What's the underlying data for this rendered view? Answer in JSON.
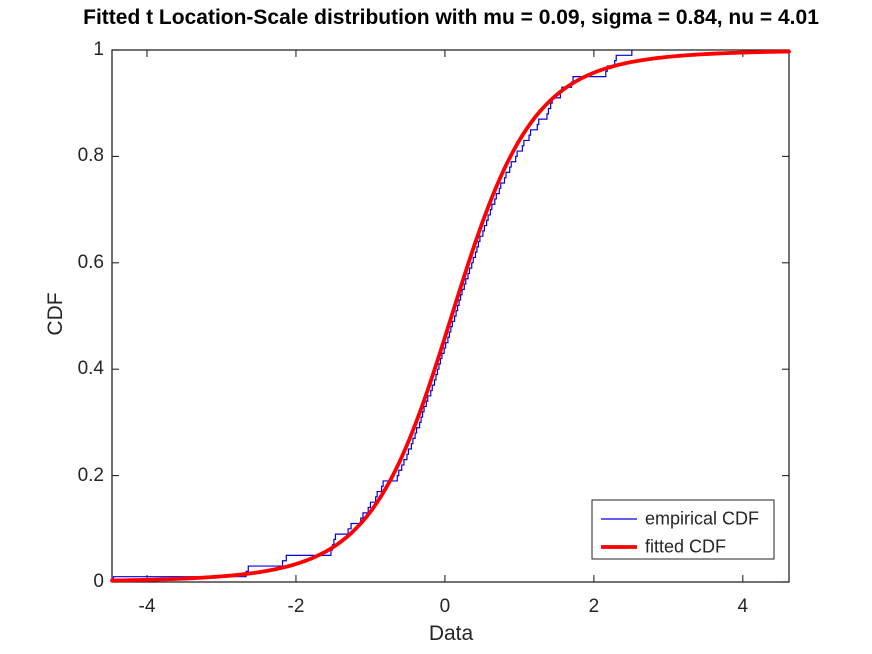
{
  "chart_data": {
    "type": "line",
    "title": "Fitted t Location-Scale distribution with mu = 0.09, sigma = 0.84, nu = 4.01",
    "xlabel": "Data",
    "ylabel": "CDF",
    "xlim": [
      -4.47,
      4.62
    ],
    "ylim": [
      0,
      1
    ],
    "xticks": {
      "values": [
        -4,
        -2,
        0,
        2,
        4
      ],
      "labels": [
        "-4",
        "-2",
        "0",
        "2",
        "4"
      ]
    },
    "yticks": {
      "values": [
        0,
        0.2,
        0.4,
        0.6,
        0.8,
        1
      ],
      "labels": [
        "0",
        "0.2",
        "0.4",
        "0.6",
        "0.8",
        "1"
      ]
    },
    "grid": false,
    "background": "#ffffff",
    "axis_color": "#262626",
    "legend": {
      "position": "southeast",
      "border_color": "#262626",
      "background": "#ffffff"
    },
    "series": [
      {
        "name": "empirical CDF",
        "style": "stairs",
        "color": "#0000E0",
        "line_width": 1.2,
        "samples": [
          -4.45,
          -2.67,
          -2.64,
          -2.18,
          -2.13,
          -1.53,
          -1.51,
          -1.49,
          -1.47,
          -1.3,
          -1.26,
          -1.13,
          -1.1,
          -1.03,
          -1.0,
          -0.93,
          -0.91,
          -0.85,
          -0.83,
          -0.64,
          -0.62,
          -0.58,
          -0.55,
          -0.51,
          -0.49,
          -0.45,
          -0.43,
          -0.4,
          -0.38,
          -0.34,
          -0.32,
          -0.3,
          -0.28,
          -0.25,
          -0.23,
          -0.19,
          -0.17,
          -0.14,
          -0.12,
          -0.1,
          -0.08,
          -0.06,
          -0.04,
          -0.01,
          0.01,
          0.04,
          0.06,
          0.08,
          0.1,
          0.13,
          0.15,
          0.17,
          0.19,
          0.21,
          0.23,
          0.26,
          0.28,
          0.31,
          0.33,
          0.36,
          0.38,
          0.41,
          0.43,
          0.45,
          0.47,
          0.51,
          0.53,
          0.56,
          0.58,
          0.61,
          0.63,
          0.67,
          0.69,
          0.73,
          0.75,
          0.8,
          0.82,
          0.87,
          0.89,
          0.95,
          0.97,
          1.04,
          1.06,
          1.13,
          1.15,
          1.24,
          1.26,
          1.37,
          1.39,
          1.42,
          1.44,
          1.55,
          1.57,
          1.7,
          1.72,
          2.16,
          2.18,
          2.28,
          2.3,
          2.51
        ]
      },
      {
        "name": "fitted CDF",
        "style": "t_location_scale_cdf",
        "color": "#FF0000",
        "line_width": 3.8,
        "params": {
          "mu": 0.09,
          "sigma": 0.84,
          "nu": 4.01
        }
      }
    ]
  }
}
